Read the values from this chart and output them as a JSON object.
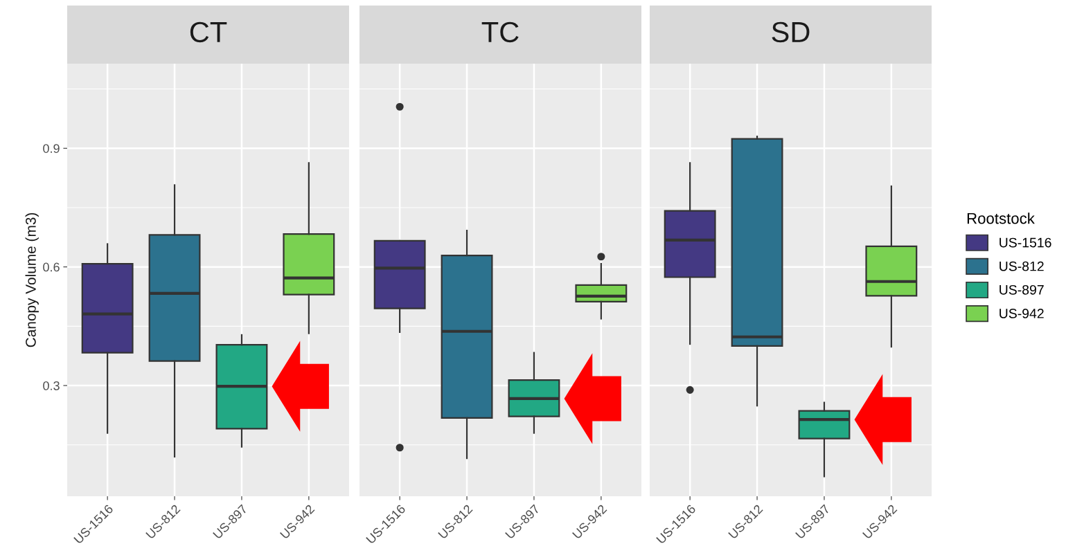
{
  "chart_data": [
    {
      "type": "box",
      "title": "CT",
      "ylabel": "Canopy Volume (m3)",
      "categories": [
        "US-1516",
        "US-812",
        "US-897",
        "US-942"
      ],
      "ylim": [
        0.02,
        1.114
      ],
      "yticks": [
        0.3,
        0.6,
        0.9
      ],
      "grid": true,
      "series": [
        {
          "color": "#443983",
          "boxes": [
            {
              "low": 0.18,
              "q1": 0.383,
              "median": 0.481,
              "q3": 0.608,
              "high": 0.658
            },
            null,
            null,
            null
          ]
        },
        {
          "color": "#2c728e",
          "boxes": [
            null,
            {
              "low": 0.12,
              "q1": 0.362,
              "median": 0.533,
              "q3": 0.681,
              "high": 0.807
            },
            null,
            null
          ]
        },
        {
          "color": "#22a884",
          "boxes": [
            null,
            null,
            {
              "low": 0.145,
              "q1": 0.191,
              "median": 0.298,
              "q3": 0.403,
              "high": 0.428
            },
            null
          ]
        },
        {
          "color": "#7ad151",
          "boxes": [
            null,
            null,
            null,
            {
              "low": 0.432,
              "q1": 0.53,
              "median": 0.572,
              "q3": 0.683,
              "high": 0.863
            }
          ]
        }
      ]
    },
    {
      "type": "box",
      "title": "TC",
      "categories": [
        "US-1516",
        "US-812",
        "US-897",
        "US-942"
      ],
      "ylim": [
        0.02,
        1.114
      ],
      "yticks": [
        0.3,
        0.6,
        0.9
      ],
      "tick_labels": "x",
      "grid": true,
      "series": [
        {
          "color": "#443983",
          "boxes": [
            {
              "low": 0.435,
              "q1": 0.495,
              "median": 0.597,
              "q3": 0.666,
              "high": 0.666,
              "outliers": [
                1.005,
                0.143
              ]
            },
            null,
            null,
            null
          ]
        },
        {
          "color": "#2c728e",
          "boxes": [
            null,
            {
              "low": 0.116,
              "q1": 0.218,
              "median": 0.437,
              "q3": 0.629,
              "high": 0.692
            },
            null,
            null
          ]
        },
        {
          "color": "#22a884",
          "boxes": [
            null,
            null,
            {
              "low": 0.18,
              "q1": 0.222,
              "median": 0.267,
              "q3": 0.314,
              "high": 0.383
            },
            null
          ]
        },
        {
          "color": "#7ad151",
          "boxes": [
            null,
            null,
            null,
            {
              "low": 0.469,
              "q1": 0.512,
              "median": 0.526,
              "q3": 0.554,
              "high": 0.608,
              "outliers": [
                0.626
              ]
            }
          ]
        }
      ]
    },
    {
      "type": "box",
      "title": "SD",
      "legend_title": "Rootstock",
      "categories": [
        "US-1516",
        "US-812",
        "US-897",
        "US-942"
      ],
      "ylim": [
        0.02,
        1.114
      ],
      "yticks": [
        0.3,
        0.6,
        0.9
      ],
      "tick_labels": "x",
      "grid": true,
      "legend": "right",
      "series": [
        {
          "name": "US-1516",
          "color": "#443983",
          "boxes": [
            {
              "low": 0.405,
              "q1": 0.574,
              "median": 0.668,
              "q3": 0.742,
              "high": 0.863,
              "outliers": [
                0.289
              ]
            },
            null,
            null,
            null
          ]
        },
        {
          "name": "US-812",
          "color": "#2c728e",
          "boxes": [
            null,
            {
              "low": 0.249,
              "q1": 0.4,
              "median": 0.423,
              "q3": 0.924,
              "high": 0.93
            },
            null,
            null
          ]
        },
        {
          "name": "US-897",
          "color": "#22a884",
          "boxes": [
            null,
            null,
            {
              "low": 0.07,
              "q1": 0.166,
              "median": 0.214,
              "q3": 0.236,
              "high": 0.257
            },
            null
          ]
        },
        {
          "name": "US-942",
          "color": "#7ad151",
          "boxes": [
            null,
            null,
            null,
            {
              "low": 0.398,
              "q1": 0.527,
              "median": 0.563,
              "q3": 0.652,
              "high": 0.804
            }
          ]
        }
      ]
    }
  ]
}
